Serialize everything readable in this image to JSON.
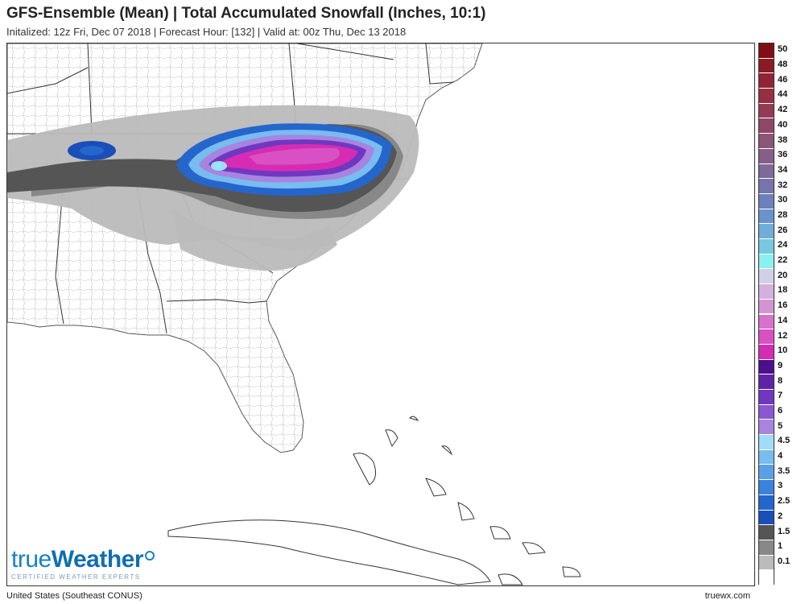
{
  "header": {
    "title": "GFS-Ensemble (Mean) | Total Accumulated Snowfall (Inches, 10:1)",
    "subtitle": "Initalized: 12z Fri, Dec 07 2018 | Forecast Hour: [132] | Valid at: 00z Thu, Dec 13 2018"
  },
  "legend": {
    "scale": [
      {
        "label": "50",
        "color": "#7f0f14"
      },
      {
        "label": "48",
        "color": "#8a1a24"
      },
      {
        "label": "46",
        "color": "#902434"
      },
      {
        "label": "44",
        "color": "#963044"
      },
      {
        "label": "42",
        "color": "#933b55"
      },
      {
        "label": "40",
        "color": "#8f4766"
      },
      {
        "label": "38",
        "color": "#8a5577"
      },
      {
        "label": "36",
        "color": "#855f88"
      },
      {
        "label": "34",
        "color": "#7e6a99"
      },
      {
        "label": "32",
        "color": "#7674aa"
      },
      {
        "label": "30",
        "color": "#6e80bb"
      },
      {
        "label": "28",
        "color": "#6a92cc"
      },
      {
        "label": "26",
        "color": "#6eaed8"
      },
      {
        "label": "24",
        "color": "#78c8e2"
      },
      {
        "label": "22",
        "color": "#8cf0f0"
      },
      {
        "label": "20",
        "color": "#d0d0e8"
      },
      {
        "label": "18",
        "color": "#d4b0dc"
      },
      {
        "label": "16",
        "color": "#d494d4"
      },
      {
        "label": "14",
        "color": "#d772cc"
      },
      {
        "label": "12",
        "color": "#d950c4"
      },
      {
        "label": "10",
        "color": "#d62cb4"
      },
      {
        "label": "9",
        "color": "#4d0f8e"
      },
      {
        "label": "8",
        "color": "#5e24a8"
      },
      {
        "label": "7",
        "color": "#7038c0"
      },
      {
        "label": "6",
        "color": "#8a58d2"
      },
      {
        "label": "5",
        "color": "#a684e0"
      },
      {
        "label": "4.5",
        "color": "#a0dcf8"
      },
      {
        "label": "4",
        "color": "#78bcf0"
      },
      {
        "label": "3.5",
        "color": "#5aa0e6"
      },
      {
        "label": "3",
        "color": "#3a82dc"
      },
      {
        "label": "2.5",
        "color": "#2466cc"
      },
      {
        "label": "2",
        "color": "#1a4eb8"
      },
      {
        "label": "1.5",
        "color": "#555555"
      },
      {
        "label": "1",
        "color": "#888888"
      },
      {
        "label": "0.1",
        "color": "#bbbbbb"
      },
      {
        "label": "",
        "color": "#ffffff"
      }
    ]
  },
  "logo": {
    "prefix": "true",
    "brand": "Weather",
    "tagline": "CERTIFIED WEATHER EXPERTS"
  },
  "footer": {
    "region": "United States (Southeast CONUS)",
    "site": "truewx.com"
  }
}
